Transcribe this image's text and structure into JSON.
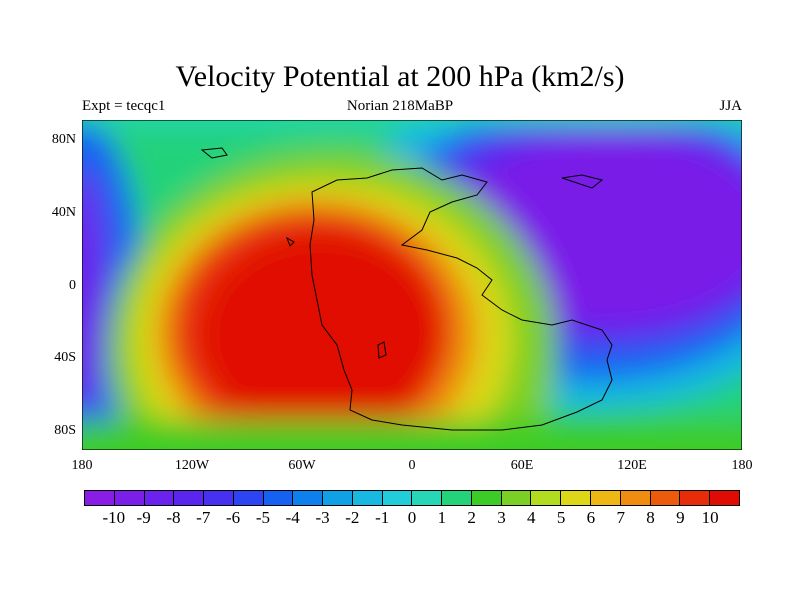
{
  "title": "Velocity Potential at 200 hPa (km2/s)",
  "subtitle": {
    "left": "Expt = tecqc1",
    "center": "Norian 218MaBP",
    "right": "JJA"
  },
  "axes": {
    "y_labels": [
      "80N",
      "40N",
      "0",
      "40S",
      "80S"
    ],
    "x_labels": [
      "180",
      "120W",
      "60W",
      "0",
      "60E",
      "120E",
      "180"
    ]
  },
  "colorbar": {
    "labels": [
      "-10",
      "-9",
      "-8",
      "-7",
      "-6",
      "-5",
      "-4",
      "-3",
      "-2",
      "-1",
      "0",
      "1",
      "2",
      "3",
      "4",
      "5",
      "6",
      "7",
      "8",
      "9",
      "10"
    ],
    "colors": [
      "#8a1ce6",
      "#7a1ee8",
      "#6a22ec",
      "#5a26ee",
      "#4830f0",
      "#2d44f2",
      "#1660f2",
      "#0e80ee",
      "#10a0e6",
      "#18b8e0",
      "#22ccd8",
      "#26d6b6",
      "#24d27a",
      "#3ccc28",
      "#7ad024",
      "#b2dc20",
      "#dcd818",
      "#eeb814",
      "#f08c10",
      "#ec5a0c",
      "#e62c08",
      "#e00c04"
    ]
  },
  "chart_data": {
    "type": "heatmap",
    "title": "Velocity Potential at 200 hPa (km2/s)",
    "units": "km2/s",
    "xlabel": "",
    "ylabel": "",
    "x_range": [
      -180,
      180
    ],
    "y_range": [
      -90,
      90
    ],
    "levels": [
      -10,
      -9,
      -8,
      -7,
      -6,
      -5,
      -4,
      -3,
      -2,
      -1,
      0,
      1,
      2,
      3,
      4,
      5,
      6,
      7,
      8,
      9,
      10
    ],
    "features": [
      {
        "name": "positive maximum",
        "center_lon": -20,
        "center_lat": -15,
        "value": 10
      },
      {
        "name": "negative minimum",
        "center_lon": 130,
        "center_lat": 20,
        "value": -10
      },
      {
        "name": "secondary negative",
        "center_lon": -178,
        "center_lat": 0,
        "value": -9
      }
    ]
  }
}
